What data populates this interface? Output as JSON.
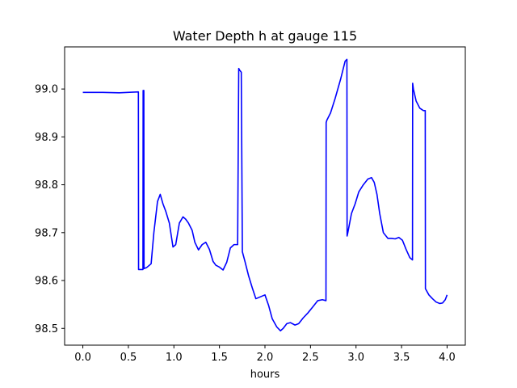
{
  "chart_data": {
    "type": "line",
    "title": "Water Depth h at gauge 115",
    "xlabel": "hours",
    "ylabel": "",
    "xlim": [
      -0.2,
      4.2
    ],
    "ylim": [
      98.465,
      99.088
    ],
    "xticks": [
      0.0,
      0.5,
      1.0,
      1.5,
      2.0,
      2.5,
      3.0,
      3.5,
      4.0
    ],
    "xtick_labels": [
      "0.0",
      "0.5",
      "1.0",
      "1.5",
      "2.0",
      "2.5",
      "3.0",
      "3.5",
      "4.0"
    ],
    "yticks": [
      98.5,
      98.6,
      98.7,
      98.8,
      98.9,
      99.0
    ],
    "ytick_labels": [
      "98.5",
      "98.6",
      "98.7",
      "98.8",
      "98.9",
      "99.0"
    ],
    "grid": false,
    "series": [
      {
        "color": "#0000ff",
        "x": [
          0.0,
          0.2,
          0.4,
          0.61,
          0.612,
          0.66,
          0.662,
          0.67,
          0.672,
          0.7,
          0.75,
          0.78,
          0.82,
          0.85,
          0.88,
          0.91,
          0.95,
          0.99,
          1.02,
          1.06,
          1.1,
          1.13,
          1.16,
          1.2,
          1.23,
          1.27,
          1.31,
          1.35,
          1.39,
          1.43,
          1.46,
          1.5,
          1.54,
          1.58,
          1.62,
          1.66,
          1.7,
          1.712,
          1.72,
          1.74,
          1.752,
          1.78,
          1.82,
          1.86,
          1.9,
          1.95,
          2.0,
          2.04,
          2.08,
          2.13,
          2.17,
          2.2,
          2.24,
          2.28,
          2.33,
          2.37,
          2.42,
          2.47,
          2.53,
          2.58,
          2.63,
          2.67,
          2.672,
          2.68,
          2.72,
          2.77,
          2.83,
          2.88,
          2.9,
          2.902,
          2.91,
          2.95,
          2.99,
          3.03,
          3.08,
          3.13,
          3.17,
          3.2,
          3.23,
          3.26,
          3.3,
          3.35,
          3.39,
          3.43,
          3.47,
          3.51,
          3.55,
          3.59,
          3.62,
          3.622,
          3.63,
          3.66,
          3.7,
          3.74,
          3.76,
          3.762,
          3.8,
          3.84,
          3.88,
          3.92,
          3.95,
          3.98,
          4.0
        ],
        "y": [
          98.993,
          98.993,
          98.992,
          98.994,
          98.623,
          98.623,
          98.997,
          98.997,
          98.625,
          98.627,
          98.635,
          98.7,
          98.765,
          98.78,
          98.76,
          98.745,
          98.72,
          98.67,
          98.675,
          98.72,
          98.733,
          98.728,
          98.72,
          98.705,
          98.68,
          98.664,
          98.675,
          98.68,
          98.665,
          98.64,
          98.632,
          98.628,
          98.622,
          98.638,
          98.668,
          98.675,
          98.675,
          99.043,
          99.04,
          99.035,
          98.66,
          98.64,
          98.61,
          98.585,
          98.562,
          98.566,
          98.57,
          98.548,
          98.52,
          98.503,
          98.495,
          98.5,
          98.51,
          98.512,
          98.507,
          98.51,
          98.522,
          98.532,
          98.546,
          98.558,
          98.56,
          98.558,
          98.93,
          98.935,
          98.95,
          98.98,
          99.02,
          99.058,
          99.062,
          98.693,
          98.7,
          98.74,
          98.76,
          98.785,
          98.8,
          98.812,
          98.815,
          98.805,
          98.78,
          98.74,
          98.7,
          98.688,
          98.688,
          98.687,
          98.69,
          98.684,
          98.665,
          98.648,
          98.643,
          99.012,
          99.0,
          98.975,
          98.96,
          98.955,
          98.955,
          98.583,
          98.57,
          98.562,
          98.555,
          98.552,
          98.553,
          98.56,
          98.57
        ]
      }
    ]
  }
}
